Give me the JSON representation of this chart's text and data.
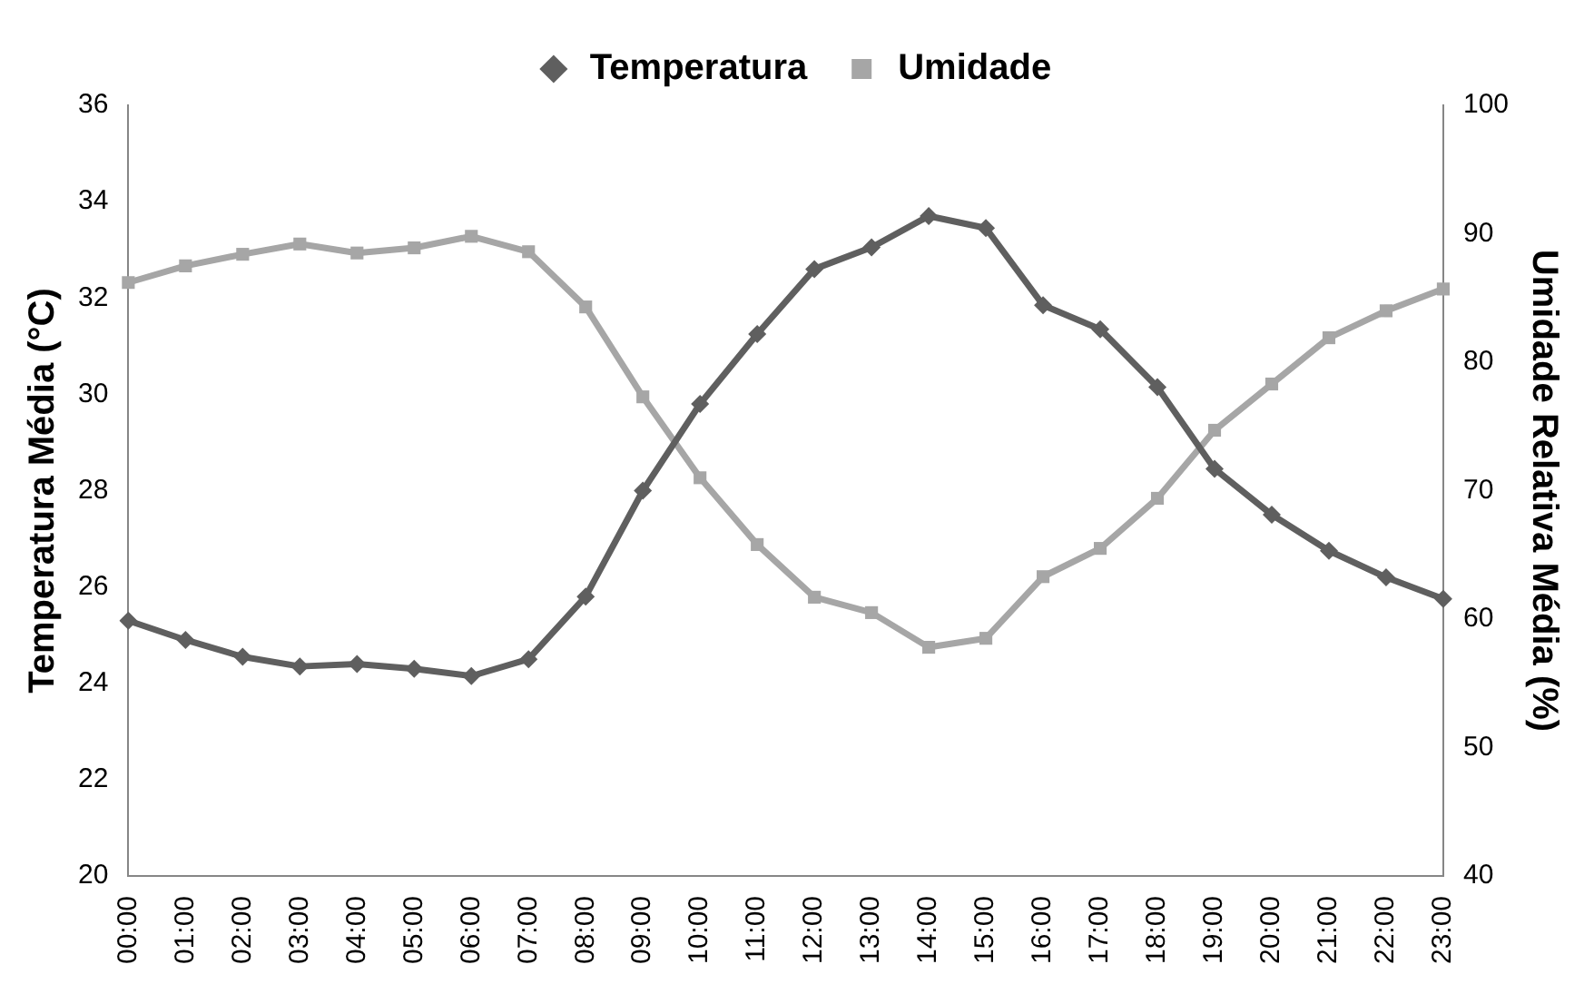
{
  "chart_data": {
    "type": "line",
    "ylabel": "Temperatura Média (°C)",
    "y2label": "Umidade Relativa Média (%)",
    "categories": [
      "00:00",
      "01:00",
      "02:00",
      "03:00",
      "04:00",
      "05:00",
      "06:00",
      "07:00",
      "08:00",
      "09:00",
      "10:00",
      "11:00",
      "12:00",
      "13:00",
      "14:00",
      "15:00",
      "16:00",
      "17:00",
      "18:00",
      "19:00",
      "20:00",
      "21:00",
      "22:00",
      "23:00"
    ],
    "series": [
      {
        "name": "Temperatura",
        "color": "#5f5f5f",
        "marker": "diamond",
        "values": [
          25.3,
          24.9,
          24.55,
          24.35,
          24.4,
          24.3,
          24.15,
          24.5,
          25.8,
          28.0,
          29.8,
          31.25,
          32.6,
          33.05,
          33.7,
          33.45,
          31.85,
          31.35,
          30.15,
          28.45,
          27.5,
          26.75,
          26.2,
          25.75
        ]
      },
      {
        "name": "Umidade",
        "color": "#a6a6a6",
        "marker": "square",
        "axis": "y2",
        "values": [
          86.2,
          87.5,
          88.4,
          89.2,
          88.5,
          88.9,
          89.8,
          88.6,
          84.3,
          77.3,
          71.0,
          65.8,
          61.7,
          60.5,
          57.8,
          58.5,
          63.3,
          65.5,
          69.4,
          74.7,
          78.3,
          81.9,
          84.0,
          85.7
        ]
      }
    ],
    "ylim": [
      20,
      36
    ],
    "yticks": [
      20,
      22,
      24,
      26,
      28,
      30,
      32,
      34,
      36
    ],
    "y2lim": [
      40,
      100
    ],
    "y2ticks": [
      40,
      50,
      60,
      70,
      80,
      90,
      100
    ],
    "grid": false,
    "legend": "top",
    "line_style": "solid"
  }
}
